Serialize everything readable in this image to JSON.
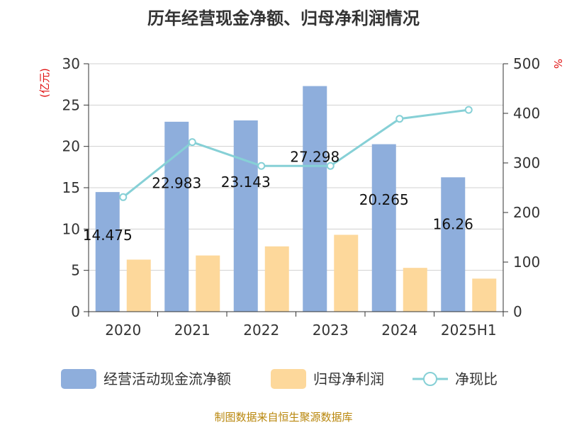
{
  "chart_data": {
    "type": "bar",
    "title": "历年经营现金净额、归母净利润情况",
    "categories": [
      "2020",
      "2021",
      "2022",
      "2023",
      "2024",
      "2025H1"
    ],
    "left_axis_label": "(亿元)",
    "right_axis_label": "%",
    "ylim": [
      0,
      30
    ],
    "yticks": [
      0,
      5,
      10,
      15,
      20,
      25,
      30
    ],
    "y2lim": [
      0,
      500
    ],
    "y2ticks": [
      0,
      100,
      200,
      300,
      400,
      500
    ],
    "grid": true,
    "legend_position": "bottom",
    "series": [
      {
        "name": "经营活动现金流净额",
        "type": "bar",
        "axis": "left",
        "color": "#8eaedc",
        "values": [
          14.475,
          22.983,
          23.143,
          27.298,
          20.265,
          16.26
        ],
        "labels": [
          "14.475",
          "22.983",
          "23.143",
          "27.298",
          "20.265",
          "16.26"
        ]
      },
      {
        "name": "归母净利润",
        "type": "bar",
        "axis": "left",
        "color": "#fdd89b",
        "values": [
          6.3,
          6.8,
          7.9,
          9.3,
          5.3,
          4.0
        ]
      },
      {
        "name": "净现比",
        "type": "line",
        "axis": "right",
        "color": "#86d0d6",
        "values": [
          231,
          342,
          294,
          294,
          389,
          407
        ]
      }
    ]
  },
  "source_note": "制图数据来自恒生聚源数据库"
}
